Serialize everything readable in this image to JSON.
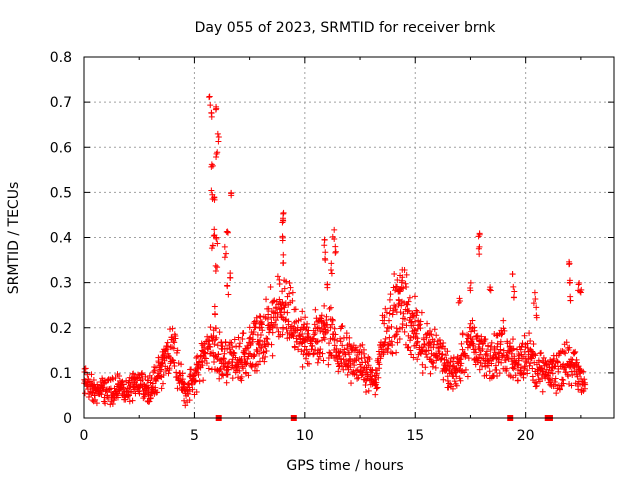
{
  "chart_data": {
    "type": "scatter",
    "title": "Day 055 of 2023, SRMTID for receiver brnk",
    "xlabel": "GPS time / hours",
    "ylabel": "SRMTID / TECUs",
    "xlim": [
      0,
      24
    ],
    "ylim": [
      0,
      0.8
    ],
    "xticks": [
      0,
      5,
      10,
      15,
      20
    ],
    "yticks": [
      0,
      0.1,
      0.2,
      0.3,
      0.4,
      0.5,
      0.6,
      0.7,
      0.8
    ],
    "xtick_labels": [
      "0",
      "5",
      "10",
      "15",
      "20"
    ],
    "ytick_labels": [
      "0",
      "0.1",
      "0.2",
      "0.3",
      "0.4",
      "0.5",
      "0.6",
      "0.7",
      "0.8"
    ],
    "grid": true,
    "marker": "+",
    "color": "#ff0000",
    "series": [
      {
        "name": "SRMTID",
        "profile_x": [
          0,
          0.5,
          1,
          1.5,
          2,
          2.5,
          3,
          3.3,
          3.7,
          4,
          4.3,
          4.6,
          5,
          5.3,
          5.6,
          6,
          6.5,
          7,
          7.5,
          8,
          8.5,
          9,
          9.5,
          10,
          10.5,
          11,
          11.5,
          12,
          12.5,
          13,
          13.2,
          13.5,
          14,
          14.5,
          15,
          15.5,
          16,
          16.5,
          17,
          17.5,
          18,
          18.5,
          19,
          19.5,
          20,
          20.5,
          21,
          21.3,
          21.7,
          22,
          22.3,
          22.7
        ],
        "profile_y": [
          0.08,
          0.06,
          0.06,
          0.07,
          0.06,
          0.07,
          0.07,
          0.09,
          0.13,
          0.16,
          0.1,
          0.06,
          0.09,
          0.12,
          0.16,
          0.15,
          0.12,
          0.13,
          0.15,
          0.17,
          0.21,
          0.24,
          0.2,
          0.16,
          0.18,
          0.2,
          0.16,
          0.13,
          0.12,
          0.09,
          0.07,
          0.18,
          0.23,
          0.25,
          0.19,
          0.16,
          0.15,
          0.1,
          0.12,
          0.17,
          0.14,
          0.13,
          0.16,
          0.12,
          0.15,
          0.11,
          0.09,
          0.1,
          0.11,
          0.13,
          0.1,
          0.07
        ],
        "spikes": [
          {
            "x": 5.7,
            "y": 0.72
          },
          {
            "x": 5.8,
            "y": 0.68
          },
          {
            "x": 6.0,
            "y": 0.71
          },
          {
            "x": 6.1,
            "y": 0.63
          },
          {
            "x": 5.8,
            "y": 0.57
          },
          {
            "x": 6.0,
            "y": 0.6
          },
          {
            "x": 5.8,
            "y": 0.51
          },
          {
            "x": 5.9,
            "y": 0.5
          },
          {
            "x": 5.9,
            "y": 0.43
          },
          {
            "x": 6.0,
            "y": 0.41
          },
          {
            "x": 5.8,
            "y": 0.39
          },
          {
            "x": 6.5,
            "y": 0.44
          },
          {
            "x": 6.4,
            "y": 0.38
          },
          {
            "x": 6.7,
            "y": 0.52
          },
          {
            "x": 6.6,
            "y": 0.33
          },
          {
            "x": 6.5,
            "y": 0.3
          },
          {
            "x": 6.0,
            "y": 0.34
          },
          {
            "x": 5.9,
            "y": 0.25
          },
          {
            "x": 9.0,
            "y": 0.47
          },
          {
            "x": 9.0,
            "y": 0.45
          },
          {
            "x": 9.0,
            "y": 0.41
          },
          {
            "x": 9.0,
            "y": 0.37
          },
          {
            "x": 10.9,
            "y": 0.4
          },
          {
            "x": 11.3,
            "y": 0.42
          },
          {
            "x": 11.4,
            "y": 0.39
          },
          {
            "x": 10.9,
            "y": 0.37
          },
          {
            "x": 11.2,
            "y": 0.35
          },
          {
            "x": 11.0,
            "y": 0.3
          },
          {
            "x": 14.4,
            "y": 0.33
          },
          {
            "x": 14.3,
            "y": 0.31
          },
          {
            "x": 17.9,
            "y": 0.41
          },
          {
            "x": 17.9,
            "y": 0.38
          },
          {
            "x": 17.5,
            "y": 0.31
          },
          {
            "x": 17.0,
            "y": 0.28
          },
          {
            "x": 18.4,
            "y": 0.3
          },
          {
            "x": 19.4,
            "y": 0.32
          },
          {
            "x": 19.5,
            "y": 0.29
          },
          {
            "x": 20.4,
            "y": 0.28
          },
          {
            "x": 20.5,
            "y": 0.25
          },
          {
            "x": 22.0,
            "y": 0.35
          },
          {
            "x": 22.0,
            "y": 0.31
          },
          {
            "x": 22.0,
            "y": 0.28
          },
          {
            "x": 22.4,
            "y": 0.31
          },
          {
            "x": 22.5,
            "y": 0.29
          }
        ],
        "axis_markers_x": [
          6.1,
          9.5,
          19.3,
          21.0
        ]
      }
    ]
  }
}
